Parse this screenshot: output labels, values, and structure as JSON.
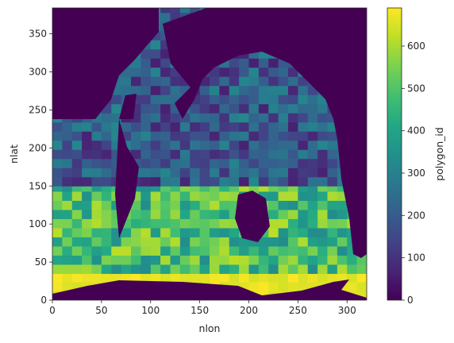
{
  "chart_data": {
    "type": "heatmap",
    "title": "",
    "xlabel": "nlon",
    "ylabel": "nlat",
    "xlim": [
      0,
      320
    ],
    "ylim": [
      0,
      384
    ],
    "x_ticks": [
      0,
      50,
      100,
      150,
      200,
      250,
      300
    ],
    "y_ticks": [
      0,
      50,
      100,
      150,
      200,
      250,
      300,
      350
    ],
    "colorbar": {
      "label": "polygon_id",
      "colormap": "viridis",
      "vmin": 0,
      "vmax": 690,
      "ticks": [
        0,
        100,
        200,
        300,
        400,
        500,
        600
      ]
    },
    "regions": {
      "land_value": 0,
      "north_band": {
        "nlat": [
          150,
          384
        ],
        "value_range": [
          60,
          320
        ]
      },
      "mid_band": {
        "nlat": [
          35,
          150
        ],
        "value_range": [
          330,
          620
        ]
      },
      "south_band": {
        "nlat": [
          0,
          35
        ],
        "value_range": [
          640,
          690
        ]
      }
    },
    "grid": false,
    "colors": {
      "land": "#440154",
      "colorbar_low": "#440154",
      "colorbar_high": "#fde725"
    }
  }
}
